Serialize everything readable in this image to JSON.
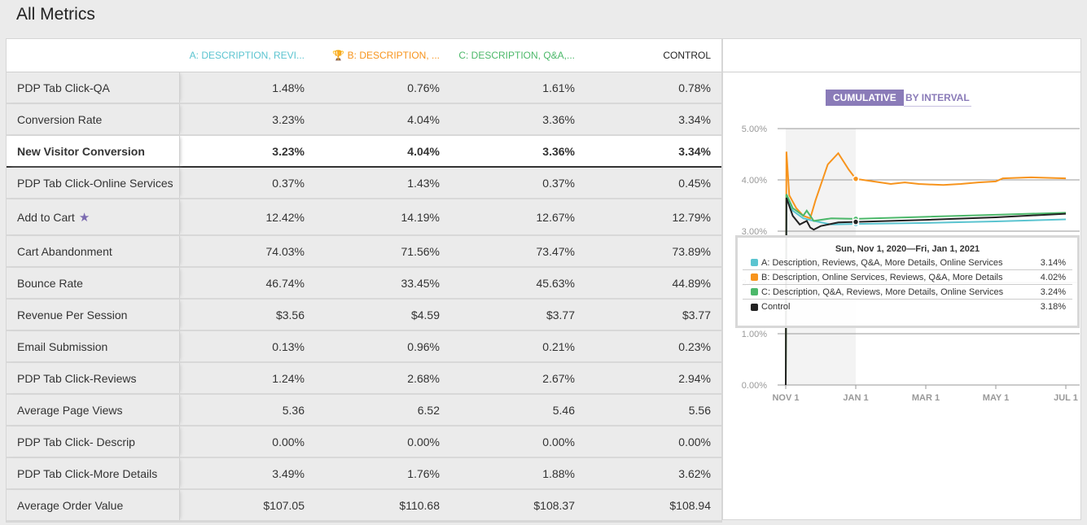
{
  "title": "All Metrics",
  "columns": [
    "A: DESCRIPTION, REVI...",
    "B: DESCRIPTION, ...",
    "C: DESCRIPTION, Q&A,...",
    "CONTROL"
  ],
  "rows": [
    {
      "label": "PDP Tab Click-QA",
      "values": [
        "1.48%",
        "0.76%",
        "1.61%",
        "0.78%"
      ]
    },
    {
      "label": "Conversion Rate",
      "values": [
        "3.23%",
        "4.04%",
        "3.36%",
        "3.34%"
      ]
    },
    {
      "label": "New Visitor Conversion",
      "values": [
        "3.23%",
        "4.04%",
        "3.36%",
        "3.34%"
      ],
      "highlight": true
    },
    {
      "label": "PDP Tab Click-Online Services",
      "values": [
        "0.37%",
        "1.43%",
        "0.37%",
        "0.45%"
      ]
    },
    {
      "label": "Add to Cart",
      "values": [
        "12.42%",
        "14.19%",
        "12.67%",
        "12.79%"
      ],
      "starred": true
    },
    {
      "label": "Cart Abandonment",
      "values": [
        "74.03%",
        "71.56%",
        "73.47%",
        "73.89%"
      ]
    },
    {
      "label": "Bounce Rate",
      "values": [
        "46.74%",
        "33.45%",
        "45.63%",
        "44.89%"
      ]
    },
    {
      "label": "Revenue Per Session",
      "values": [
        "$3.56",
        "$4.59",
        "$3.77",
        "$3.77"
      ]
    },
    {
      "label": "Email Submission",
      "values": [
        "0.13%",
        "0.96%",
        "0.21%",
        "0.23%"
      ]
    },
    {
      "label": "PDP Tab Click-Reviews",
      "values": [
        "1.24%",
        "2.68%",
        "2.67%",
        "2.94%"
      ]
    },
    {
      "label": "Average Page Views",
      "values": [
        "5.36",
        "6.52",
        "5.46",
        "5.56"
      ]
    },
    {
      "label": "PDP Tab Click- Descrip",
      "values": [
        "0.00%",
        "0.00%",
        "0.00%",
        "0.00%"
      ]
    },
    {
      "label": "PDP Tab Click-More Details",
      "values": [
        "3.49%",
        "1.76%",
        "1.88%",
        "3.62%"
      ]
    },
    {
      "label": "Average Order Value",
      "values": [
        "$107.05",
        "$110.68",
        "$108.37",
        "$108.94"
      ]
    }
  ],
  "toggle": {
    "cumulative": "CUMULATIVE",
    "by_interval": "BY INTERVAL"
  },
  "tooltip": {
    "title": "Sun, Nov 1, 2020—Fri, Jan 1, 2021",
    "items": [
      {
        "name": "A: Description, Reviews, Q&A, More Details, Online Services",
        "value": "3.14%",
        "color": "#5bc4d0"
      },
      {
        "name": "B: Description, Online Services, Reviews, Q&A, More Details",
        "value": "4.02%",
        "color": "#f7941d"
      },
      {
        "name": "C: Description, Q&A, Reviews, More Details, Online Services",
        "value": "3.24%",
        "color": "#4cb86a"
      },
      {
        "name": "Control",
        "value": "3.18%",
        "color": "#222222"
      }
    ]
  },
  "colors": {
    "A": "#5bc4d0",
    "B": "#f7941d",
    "C": "#4cb86a",
    "control": "#222222",
    "accent": "#8a7bb8"
  },
  "chart_data": {
    "type": "line",
    "ylim": [
      0,
      5
    ],
    "yticks": [
      "0.00%",
      "1.00%",
      "2.00%",
      "3.00%",
      "4.00%",
      "5.00%"
    ],
    "xticks": [
      "NOV 1",
      "JAN 1",
      "MAR 1",
      "MAY 1",
      "JUL 1"
    ],
    "x_unit": "months since Nov 1, 2020",
    "highlight_range": [
      0,
      2
    ],
    "series": [
      {
        "name": "A",
        "color": "#5bc4d0",
        "points": [
          [
            0,
            0
          ],
          [
            0.02,
            3.7
          ],
          [
            0.2,
            3.4
          ],
          [
            0.5,
            3.25
          ],
          [
            0.8,
            3.2
          ],
          [
            1.3,
            3.13
          ],
          [
            2,
            3.14
          ],
          [
            4,
            3.16
          ],
          [
            6,
            3.19
          ],
          [
            8,
            3.23
          ]
        ]
      },
      {
        "name": "B",
        "color": "#f7941d",
        "points": [
          [
            0,
            0
          ],
          [
            0.02,
            4.55
          ],
          [
            0.1,
            3.7
          ],
          [
            0.3,
            3.45
          ],
          [
            0.5,
            3.3
          ],
          [
            0.7,
            3.25
          ],
          [
            0.85,
            3.6
          ],
          [
            1.2,
            4.3
          ],
          [
            1.5,
            4.52
          ],
          [
            1.8,
            4.2
          ],
          [
            2,
            4.02
          ],
          [
            2.5,
            3.97
          ],
          [
            3,
            3.92
          ],
          [
            3.4,
            3.95
          ],
          [
            3.8,
            3.92
          ],
          [
            4.5,
            3.9
          ],
          [
            5,
            3.92
          ],
          [
            5.5,
            3.95
          ],
          [
            6,
            3.97
          ],
          [
            6.2,
            4.03
          ],
          [
            7,
            4.05
          ],
          [
            8,
            4.03
          ]
        ]
      },
      {
        "name": "C",
        "color": "#4cb86a",
        "points": [
          [
            0,
            0
          ],
          [
            0.02,
            3.72
          ],
          [
            0.2,
            3.45
          ],
          [
            0.5,
            3.3
          ],
          [
            0.6,
            3.4
          ],
          [
            0.8,
            3.2
          ],
          [
            1.3,
            3.25
          ],
          [
            2,
            3.24
          ],
          [
            4,
            3.28
          ],
          [
            6,
            3.32
          ],
          [
            8,
            3.36
          ]
        ]
      },
      {
        "name": "Control",
        "color": "#222222",
        "points": [
          [
            0,
            0
          ],
          [
            0.02,
            3.65
          ],
          [
            0.2,
            3.3
          ],
          [
            0.4,
            3.13
          ],
          [
            0.6,
            3.2
          ],
          [
            0.7,
            3.07
          ],
          [
            0.8,
            3.03
          ],
          [
            1,
            3.1
          ],
          [
            1.5,
            3.17
          ],
          [
            2,
            3.18
          ],
          [
            4,
            3.22
          ],
          [
            6,
            3.27
          ],
          [
            8,
            3.34
          ]
        ]
      }
    ]
  }
}
